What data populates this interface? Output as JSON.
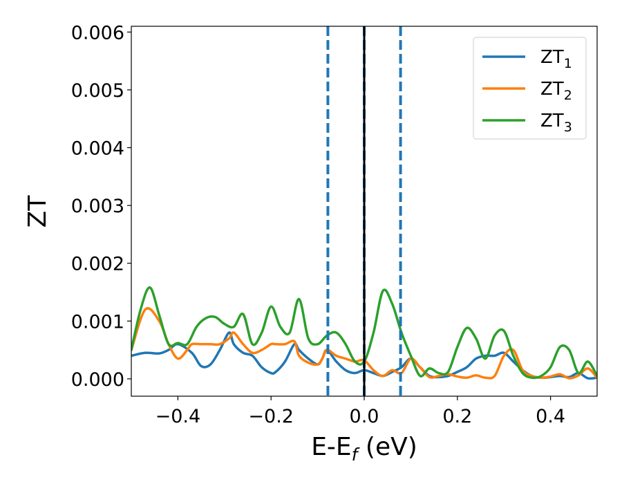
{
  "chart_data": {
    "type": "line",
    "title": "",
    "xlabel": {
      "main": "E-E",
      "sub": "f",
      "suffix": " (eV)"
    },
    "ylabel": "ZT",
    "xlim": [
      -0.5,
      0.5
    ],
    "ylim": [
      -0.0003,
      0.0061
    ],
    "x_ticks": [
      -0.4,
      -0.2,
      0.0,
      0.2,
      0.4
    ],
    "x_tick_labels": [
      "−0.4",
      "−0.2",
      "0.0",
      "0.2",
      "0.4"
    ],
    "y_ticks": [
      0.0,
      0.001,
      0.002,
      0.003,
      0.004,
      0.005,
      0.006
    ],
    "y_tick_labels": [
      "0.000",
      "0.001",
      "0.002",
      "0.003",
      "0.004",
      "0.005",
      "0.006"
    ],
    "grid": false,
    "legend_position": "top-right",
    "vertical_lines": [
      {
        "x": -0.078,
        "style": "dashed",
        "color": "#1f77b4"
      },
      {
        "x": 0.0,
        "style": "dashed",
        "color": "#1f77b4"
      },
      {
        "x": 0.078,
        "style": "dashed",
        "color": "#1f77b4"
      },
      {
        "x": 0.0,
        "style": "solid",
        "color": "#000000"
      }
    ],
    "series": [
      {
        "name": "ZT",
        "subscript": "1",
        "color": "#1f77b4",
        "x": [
          -0.5,
          -0.47,
          -0.44,
          -0.42,
          -0.4,
          -0.37,
          -0.35,
          -0.33,
          -0.31,
          -0.29,
          -0.28,
          -0.26,
          -0.24,
          -0.22,
          -0.2,
          -0.19,
          -0.17,
          -0.15,
          -0.14,
          -0.12,
          -0.1,
          -0.09,
          -0.08,
          -0.06,
          -0.04,
          -0.02,
          0.0,
          0.02,
          0.04,
          0.06,
          0.08,
          0.1,
          0.12,
          0.14,
          0.16,
          0.18,
          0.2,
          0.22,
          0.24,
          0.26,
          0.28,
          0.3,
          0.32,
          0.34,
          0.36,
          0.38,
          0.4,
          0.42,
          0.44,
          0.46,
          0.48,
          0.5
        ],
        "y": [
          0.0004,
          0.00045,
          0.00044,
          0.0005,
          0.0006,
          0.00045,
          0.00022,
          0.00025,
          0.0005,
          0.0008,
          0.0006,
          0.00045,
          0.0004,
          0.0002,
          0.0001,
          0.00012,
          0.0003,
          0.0006,
          0.0005,
          0.00035,
          0.00025,
          0.00035,
          0.0005,
          0.0003,
          0.00015,
          0.0001,
          0.00015,
          0.0001,
          5e-05,
          0.00012,
          0.0002,
          0.00035,
          0.0002,
          5e-05,
          3e-05,
          5e-05,
          0.00012,
          0.0002,
          0.00035,
          0.0004,
          0.0004,
          0.00045,
          0.0003,
          0.00015,
          5e-05,
          2e-05,
          3e-05,
          5e-05,
          3e-05,
          0.0001,
          1e-05,
          2e-05
        ]
      },
      {
        "name": "ZT",
        "subscript": "2",
        "color": "#ff7f0e",
        "x": [
          -0.5,
          -0.47,
          -0.44,
          -0.42,
          -0.4,
          -0.38,
          -0.37,
          -0.35,
          -0.33,
          -0.31,
          -0.29,
          -0.28,
          -0.26,
          -0.24,
          -0.22,
          -0.2,
          -0.19,
          -0.17,
          -0.15,
          -0.14,
          -0.12,
          -0.1,
          -0.09,
          -0.08,
          -0.06,
          -0.04,
          -0.02,
          0.0,
          0.02,
          0.04,
          0.06,
          0.08,
          0.1,
          0.12,
          0.14,
          0.16,
          0.18,
          0.2,
          0.22,
          0.24,
          0.26,
          0.28,
          0.3,
          0.32,
          0.34,
          0.36,
          0.38,
          0.4,
          0.42,
          0.44,
          0.46,
          0.48,
          0.5
        ],
        "y": [
          0.0005,
          0.0012,
          0.001,
          0.0006,
          0.00035,
          0.0005,
          0.0006,
          0.0006,
          0.0006,
          0.0006,
          0.0007,
          0.0008,
          0.0006,
          0.00045,
          0.0005,
          0.0006,
          0.0006,
          0.0006,
          0.00065,
          0.0004,
          0.00028,
          0.00025,
          0.00035,
          0.0005,
          0.0004,
          0.00035,
          0.0003,
          0.00032,
          0.00015,
          5e-05,
          0.00015,
          0.0001,
          0.00035,
          0.0002,
          3e-05,
          5e-05,
          8e-05,
          4e-05,
          2e-05,
          6e-05,
          2e-05,
          5e-05,
          0.0004,
          0.0005,
          0.00015,
          5e-05,
          2e-05,
          4e-05,
          8e-05,
          1e-05,
          6e-05,
          0.00018,
          2e-05
        ]
      },
      {
        "name": "ZT",
        "subscript": "3",
        "color": "#2ca02c",
        "x": [
          -0.5,
          -0.48,
          -0.46,
          -0.44,
          -0.42,
          -0.4,
          -0.38,
          -0.36,
          -0.34,
          -0.32,
          -0.3,
          -0.28,
          -0.26,
          -0.24,
          -0.22,
          -0.2,
          -0.18,
          -0.16,
          -0.14,
          -0.12,
          -0.1,
          -0.08,
          -0.06,
          -0.04,
          -0.02,
          0.0,
          0.02,
          0.04,
          0.06,
          0.08,
          0.1,
          0.12,
          0.14,
          0.16,
          0.18,
          0.2,
          0.22,
          0.24,
          0.26,
          0.28,
          0.3,
          0.32,
          0.34,
          0.36,
          0.38,
          0.4,
          0.42,
          0.44,
          0.46,
          0.48,
          0.5
        ],
        "y": [
          0.0005,
          0.0012,
          0.00158,
          0.0011,
          0.0006,
          0.00062,
          0.0006,
          0.0009,
          0.00105,
          0.00107,
          0.00095,
          0.0009,
          0.00112,
          0.0006,
          0.0008,
          0.00125,
          0.0009,
          0.0008,
          0.00138,
          0.0007,
          0.0006,
          0.00075,
          0.0008,
          0.0006,
          0.0003,
          0.0003,
          0.0008,
          0.00152,
          0.0013,
          0.0008,
          0.0004,
          5e-05,
          0.00018,
          0.0001,
          0.00012,
          0.00055,
          0.00088,
          0.0007,
          0.00035,
          0.00075,
          0.00083,
          0.0004,
          0.0001,
          2e-05,
          5e-05,
          0.0002,
          0.00055,
          0.0005,
          0.0001,
          0.0003,
          5e-05
        ]
      }
    ]
  }
}
